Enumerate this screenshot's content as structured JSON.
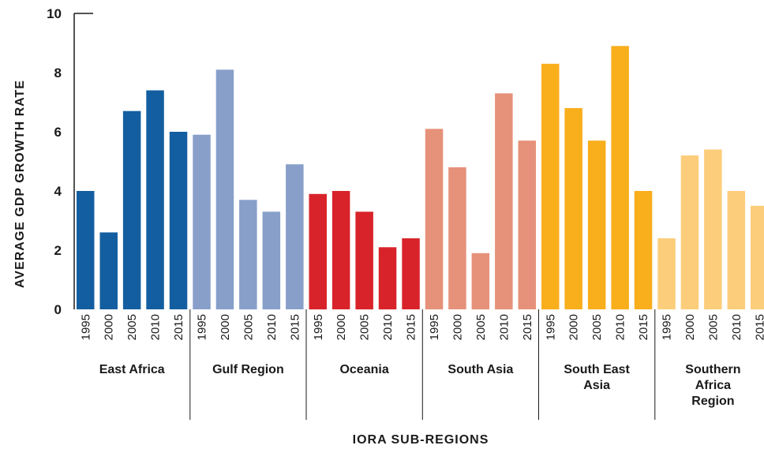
{
  "chart_data": {
    "type": "bar",
    "ylabel": "AVERAGE GDP GROWTH RATE",
    "xlabel": "IORA SUB-REGIONS",
    "ylim": [
      0,
      10
    ],
    "yticks": [
      "0",
      "2",
      "4",
      "6",
      "8",
      "10"
    ],
    "years": [
      "1995",
      "2000",
      "2005",
      "2010",
      "2015"
    ],
    "groups": [
      {
        "name": "East Africa",
        "label_lines": [
          "East Africa"
        ],
        "color": "#135ea0",
        "values": [
          4.0,
          2.6,
          6.7,
          7.4,
          6.0
        ]
      },
      {
        "name": "Gulf Region",
        "label_lines": [
          "Gulf Region"
        ],
        "color": "#889fca",
        "values": [
          5.9,
          8.1,
          3.7,
          3.3,
          4.9
        ]
      },
      {
        "name": "Oceania",
        "label_lines": [
          "Oceania"
        ],
        "color": "#d8232a",
        "values": [
          3.9,
          4.0,
          3.3,
          2.1,
          2.4
        ]
      },
      {
        "name": "South Asia",
        "label_lines": [
          "South Asia"
        ],
        "color": "#e6917a",
        "values": [
          6.1,
          4.8,
          1.9,
          7.3,
          5.7
        ]
      },
      {
        "name": "South East Asia",
        "label_lines": [
          "South East",
          "Asia"
        ],
        "color": "#f9ae1c",
        "values": [
          8.3,
          6.8,
          5.7,
          8.9,
          4.0
        ]
      },
      {
        "name": "Southern Africa Region",
        "label_lines": [
          "Southern",
          "Africa",
          "Region"
        ],
        "color": "#fccd7a",
        "values": [
          2.4,
          5.2,
          5.4,
          4.0,
          3.5
        ]
      }
    ]
  }
}
